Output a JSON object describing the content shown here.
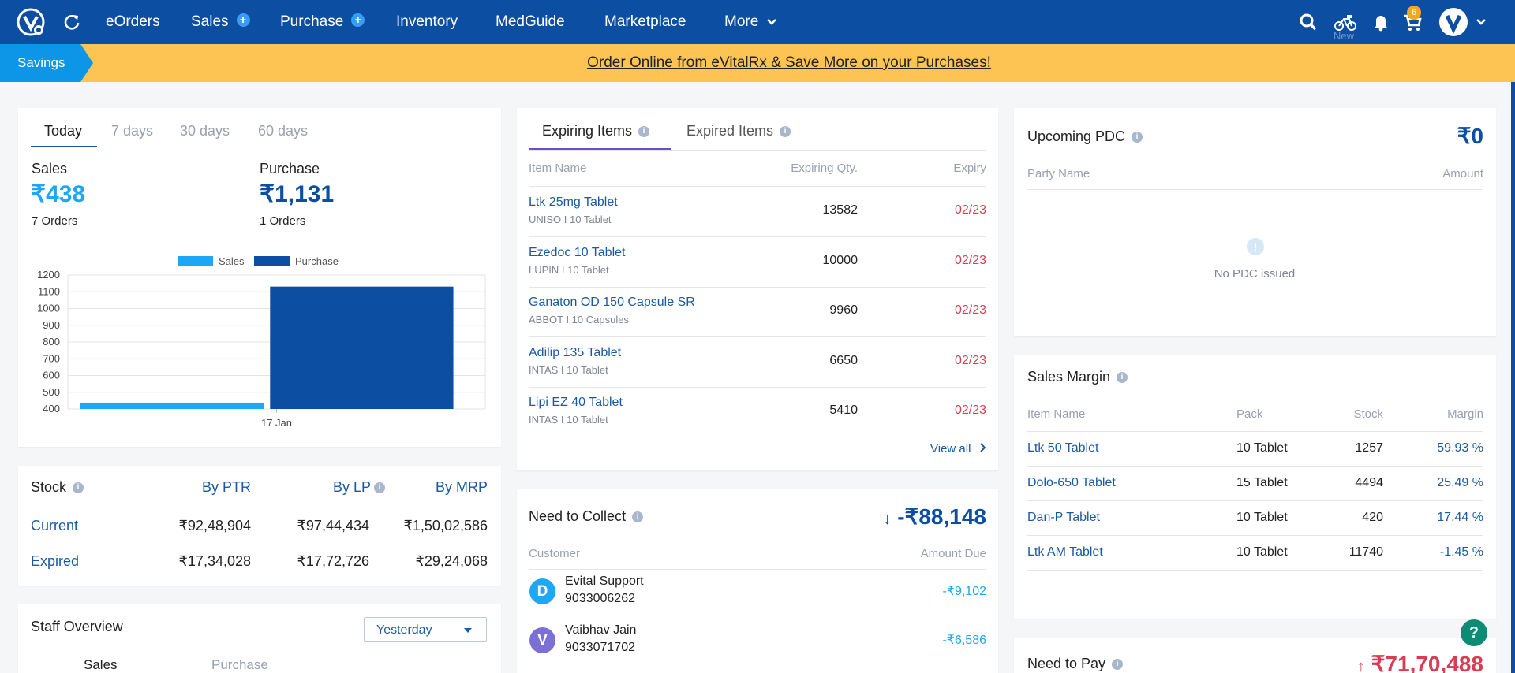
{
  "nav": {
    "items": [
      "eOrders",
      "Sales",
      "Purchase",
      "Inventory",
      "MedGuide",
      "Marketplace",
      "More"
    ],
    "cart_count": "6",
    "new_label": "New"
  },
  "savings": {
    "tag": "Savings",
    "text": "Order Online from eVitalRx & Save More on your Purchases!"
  },
  "summary": {
    "tabs": [
      "Today",
      "7 days",
      "30 days",
      "60 days"
    ],
    "sales_label": "Sales",
    "sales_value": "₹438",
    "sales_orders": "7 Orders",
    "purchase_label": "Purchase",
    "purchase_value": "₹1,131",
    "purchase_orders": "1 Orders"
  },
  "chart_data": {
    "type": "bar",
    "categories": [
      "17 Jan"
    ],
    "series": [
      {
        "name": "Sales",
        "values": [
          438
        ],
        "color": "#1ea7f5"
      },
      {
        "name": "Purchase",
        "values": [
          1131
        ],
        "color": "#0b4ea2"
      }
    ],
    "yticks": [
      400,
      500,
      600,
      700,
      800,
      900,
      1000,
      1100,
      1200
    ],
    "ylim": [
      400,
      1200
    ],
    "legend": "top-center"
  },
  "stock": {
    "title": "Stock",
    "cols": [
      "By PTR",
      "By LP",
      "By MRP"
    ],
    "rows": [
      {
        "label": "Current",
        "values": [
          "₹92,48,904",
          "₹97,44,434",
          "₹1,50,02,586"
        ]
      },
      {
        "label": "Expired",
        "values": [
          "₹17,34,028",
          "₹17,72,726",
          "₹29,24,068"
        ]
      }
    ]
  },
  "staff": {
    "title": "Staff Overview",
    "select": "Yesterday",
    "col1": "Sales",
    "col2": "Purchase"
  },
  "expiring": {
    "tabs": [
      "Expiring Items",
      "Expired Items"
    ],
    "headers": [
      "Item Name",
      "Expiring Qty.",
      "Expiry"
    ],
    "rows": [
      {
        "name": "Ltk 25mg Tablet",
        "maker": "UNISO",
        "pack": "10 Tablet",
        "qty": "13582",
        "expiry": "02/23"
      },
      {
        "name": "Ezedoc 10 Tablet",
        "maker": "LUPIN",
        "pack": "10 Tablet",
        "qty": "10000",
        "expiry": "02/23"
      },
      {
        "name": "Ganaton OD 150 Capsule SR",
        "maker": "ABBOT",
        "pack": "10 Capsules",
        "qty": "9960",
        "expiry": "02/23"
      },
      {
        "name": "Adilip 135 Tablet",
        "maker": "INTAS",
        "pack": "10 Tablet",
        "qty": "6650",
        "expiry": "02/23"
      },
      {
        "name": "Lipi EZ 40 Tablet",
        "maker": "INTAS",
        "pack": "10 Tablet",
        "qty": "5410",
        "expiry": "02/23"
      }
    ],
    "view_all": "View all"
  },
  "collect": {
    "title": "Need to Collect",
    "total": "-₹88,148",
    "headers": [
      "Customer",
      "Amount Due"
    ],
    "rows": [
      {
        "initial": "D",
        "name": "Evital Support",
        "phone": "9033006262",
        "amount": "-₹9,102",
        "color": "#1ea7f5"
      },
      {
        "initial": "V",
        "name": "Vaibhav Jain",
        "phone": "9033071702",
        "amount": "-₹6,586",
        "color": "#7c6fd6"
      }
    ]
  },
  "pdc": {
    "title": "Upcoming PDC",
    "total": "₹0",
    "headers": [
      "Party Name",
      "Amount"
    ],
    "empty": "No PDC issued"
  },
  "margin": {
    "title": "Sales Margin",
    "headers": [
      "Item Name",
      "Pack",
      "Stock",
      "Margin"
    ],
    "rows": [
      {
        "name": "Ltk 50 Tablet",
        "pack": "10 Tablet",
        "stock": "1257",
        "margin": "59.93 %"
      },
      {
        "name": "Dolo-650 Tablet",
        "pack": "15 Tablet",
        "stock": "4494",
        "margin": "25.49 %"
      },
      {
        "name": "Dan-P Tablet",
        "pack": "10 Tablet",
        "stock": "420",
        "margin": "17.44 %"
      },
      {
        "name": "Ltk AM Tablet",
        "pack": "10 Tablet",
        "stock": "11740",
        "margin": "-1.45 %"
      }
    ]
  },
  "pay": {
    "title": "Need to Pay",
    "total": "₹71,70,488"
  },
  "help": "?"
}
